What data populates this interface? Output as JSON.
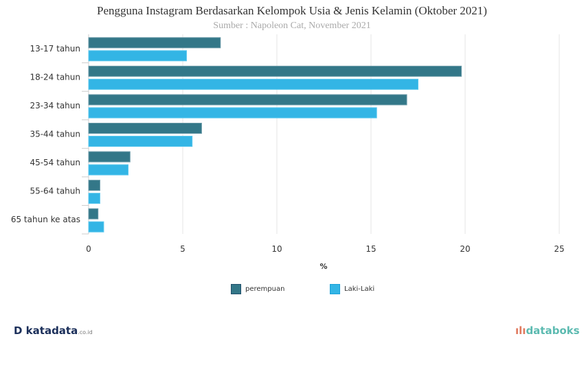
{
  "chart_data": {
    "type": "bar",
    "orientation": "horizontal",
    "title": "Pengguna Instagram Berdasarkan Kelompok Usia & Jenis Kelamin (Oktober 2021)",
    "subtitle": "Sumber : Napoleon Cat, November 2021",
    "categories": [
      "13-17 tahun",
      "18-24 tahun",
      "23-34 tahun",
      "35-44 tahun",
      "45-54 tahun",
      "55-64 tahuh",
      "65 tahun ke atas"
    ],
    "series": [
      {
        "name": "perempuan",
        "color": "#337788",
        "values": [
          7.0,
          19.8,
          16.9,
          6.0,
          2.2,
          0.6,
          0.5
        ]
      },
      {
        "name": "Laki-Laki",
        "color": "#33b5e5",
        "values": [
          5.2,
          17.5,
          15.3,
          5.5,
          2.1,
          0.6,
          0.8
        ]
      }
    ],
    "xlabel": "%",
    "xlim": [
      0,
      25
    ],
    "xticks": [
      "0",
      "5",
      "10",
      "15",
      "20",
      "25"
    ],
    "grid": true,
    "legend": "bottom-center"
  },
  "footer": {
    "left_logo": "katadata.co.id",
    "right_logo": "databoks"
  }
}
